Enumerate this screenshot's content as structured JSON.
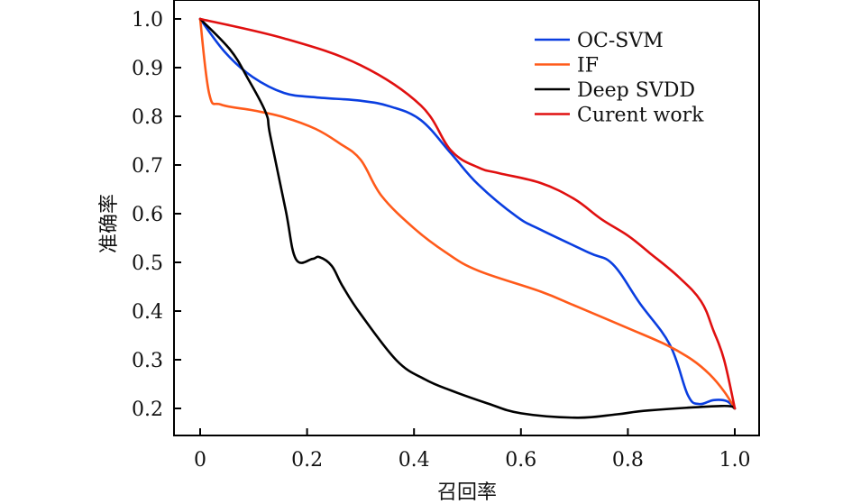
{
  "chart_data": {
    "type": "line",
    "title": "",
    "xlabel": "召回率",
    "ylabel": "准确率",
    "xlim": [
      0,
      1.0
    ],
    "ylim": [
      0.2,
      1.0
    ],
    "xticks": [
      0,
      0.2,
      0.4,
      0.6,
      0.8,
      1.0
    ],
    "xtick_labels": [
      "0",
      "0.2",
      "0.4",
      "0.6",
      "0.8",
      "1.0"
    ],
    "yticks": [
      0.2,
      0.3,
      0.4,
      0.5,
      0.6,
      0.7,
      0.8,
      0.9,
      1.0
    ],
    "ytick_labels": [
      "0.2",
      "0.3",
      "0.4",
      "0.5",
      "0.6",
      "0.7",
      "0.8",
      "0.9",
      "1.0"
    ],
    "grid": false,
    "legend_position": "top-right",
    "series": [
      {
        "name": "OC-SVM",
        "color": "#0a3ee0",
        "x": [
          0,
          0.047,
          0.098,
          0.157,
          0.216,
          0.3,
          0.356,
          0.413,
          0.469,
          0.52,
          0.592,
          0.637,
          0.727,
          0.772,
          0.823,
          0.879,
          0.912,
          0.933,
          0.96,
          0.985,
          1.0
        ],
        "y": [
          1.0,
          0.931,
          0.881,
          0.848,
          0.839,
          0.832,
          0.82,
          0.792,
          0.724,
          0.66,
          0.594,
          0.567,
          0.52,
          0.496,
          0.415,
          0.33,
          0.228,
          0.209,
          0.217,
          0.215,
          0.2
        ]
      },
      {
        "name": "IF",
        "color": "#ff5a1a",
        "x": [
          0,
          0.017,
          0.039,
          0.1,
          0.157,
          0.216,
          0.26,
          0.3,
          0.339,
          0.4,
          0.46,
          0.52,
          0.637,
          0.705,
          0.8,
          0.873,
          0.92,
          0.953,
          0.98,
          1.0
        ],
        "y": [
          1.0,
          0.846,
          0.824,
          0.812,
          0.798,
          0.774,
          0.745,
          0.711,
          0.637,
          0.57,
          0.52,
          0.483,
          0.44,
          0.409,
          0.365,
          0.33,
          0.3,
          0.27,
          0.235,
          0.2
        ]
      },
      {
        "name": "Deep SVDD",
        "color": "#000000",
        "x": [
          0,
          0.056,
          0.089,
          0.123,
          0.131,
          0.16,
          0.179,
          0.21,
          0.223,
          0.246,
          0.266,
          0.3,
          0.368,
          0.42,
          0.469,
          0.536,
          0.6,
          0.705,
          0.78,
          0.84,
          0.975,
          1.0
        ],
        "y": [
          1.0,
          0.937,
          0.878,
          0.807,
          0.761,
          0.607,
          0.507,
          0.507,
          0.511,
          0.493,
          0.452,
          0.394,
          0.298,
          0.26,
          0.237,
          0.211,
          0.19,
          0.181,
          0.188,
          0.196,
          0.205,
          0.2
        ]
      },
      {
        "name": "Curent work",
        "color": "#e01010",
        "x": [
          0,
          0.157,
          0.3,
          0.413,
          0.469,
          0.52,
          0.56,
          0.637,
          0.7,
          0.75,
          0.8,
          0.84,
          0.895,
          0.937,
          0.96,
          0.98,
          1.0
        ],
        "y": [
          1.0,
          0.96,
          0.905,
          0.822,
          0.73,
          0.695,
          0.683,
          0.663,
          0.63,
          0.589,
          0.555,
          0.52,
          0.47,
          0.42,
          0.36,
          0.3,
          0.2
        ]
      }
    ]
  }
}
